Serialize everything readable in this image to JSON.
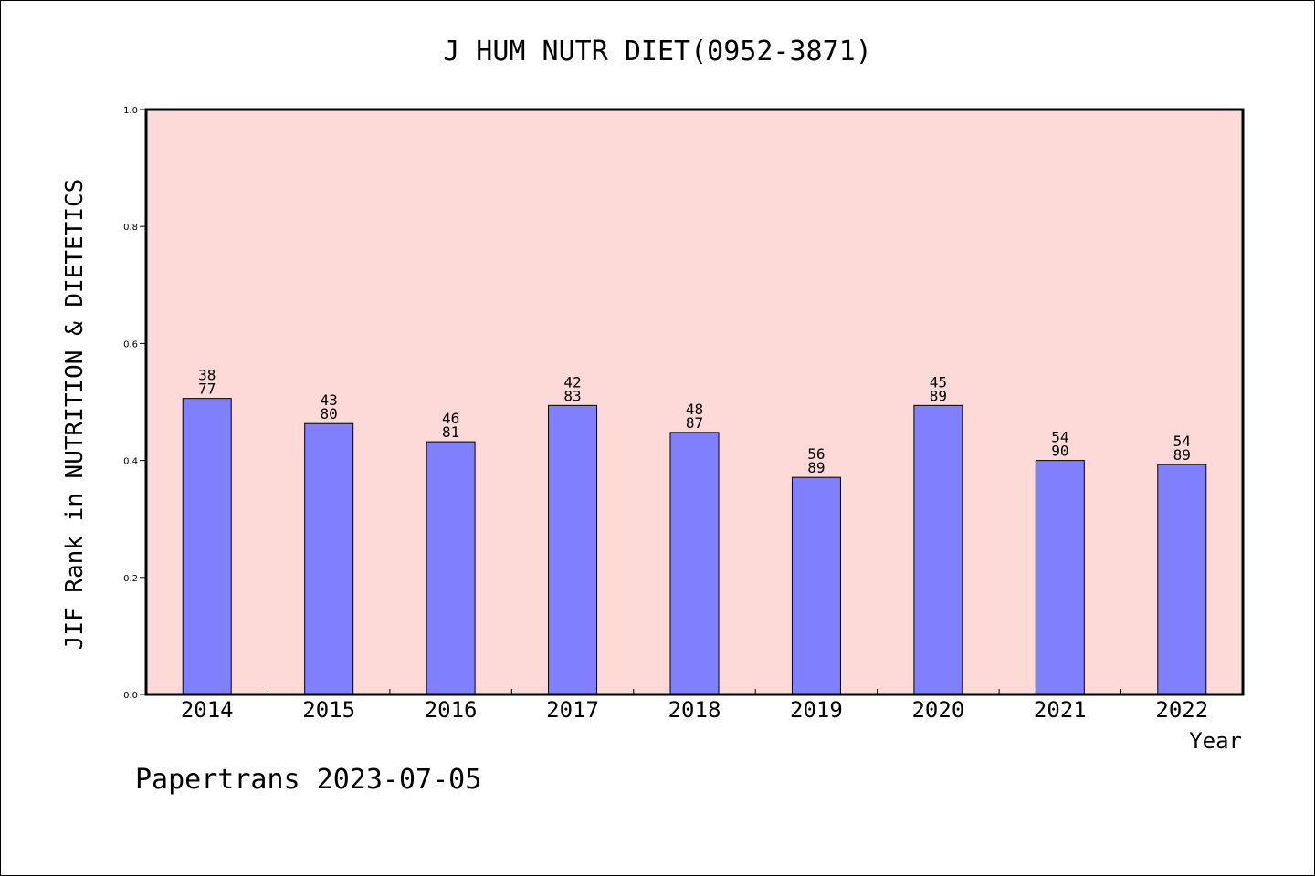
{
  "chart_data": {
    "type": "bar",
    "title": "J HUM NUTR DIET(0952-3871)",
    "xlabel": "Year",
    "ylabel": "JIF Rank in NUTRITION & DIETETICS",
    "ylim": [
      0,
      1.0
    ],
    "yticks": [
      "0.0",
      "0.2",
      "0.4",
      "0.6",
      "0.8",
      "1.0"
    ],
    "grid": false,
    "categories": [
      "2014",
      "2015",
      "2016",
      "2017",
      "2018",
      "2019",
      "2020",
      "2021",
      "2022"
    ],
    "values": [
      0.506,
      0.463,
      0.432,
      0.494,
      0.448,
      0.371,
      0.494,
      0.4,
      0.393
    ],
    "labels": [
      {
        "rank": "38",
        "total": "77"
      },
      {
        "rank": "43",
        "total": "80"
      },
      {
        "rank": "46",
        "total": "81"
      },
      {
        "rank": "42",
        "total": "83"
      },
      {
        "rank": "48",
        "total": "87"
      },
      {
        "rank": "56",
        "total": "89"
      },
      {
        "rank": "45",
        "total": "89"
      },
      {
        "rank": "54",
        "total": "90"
      },
      {
        "rank": "54",
        "total": "89"
      }
    ],
    "colors": {
      "plot_bg": "#FDDAD7",
      "bar": "#8080FF"
    }
  },
  "footer": "Papertrans 2023-07-05"
}
